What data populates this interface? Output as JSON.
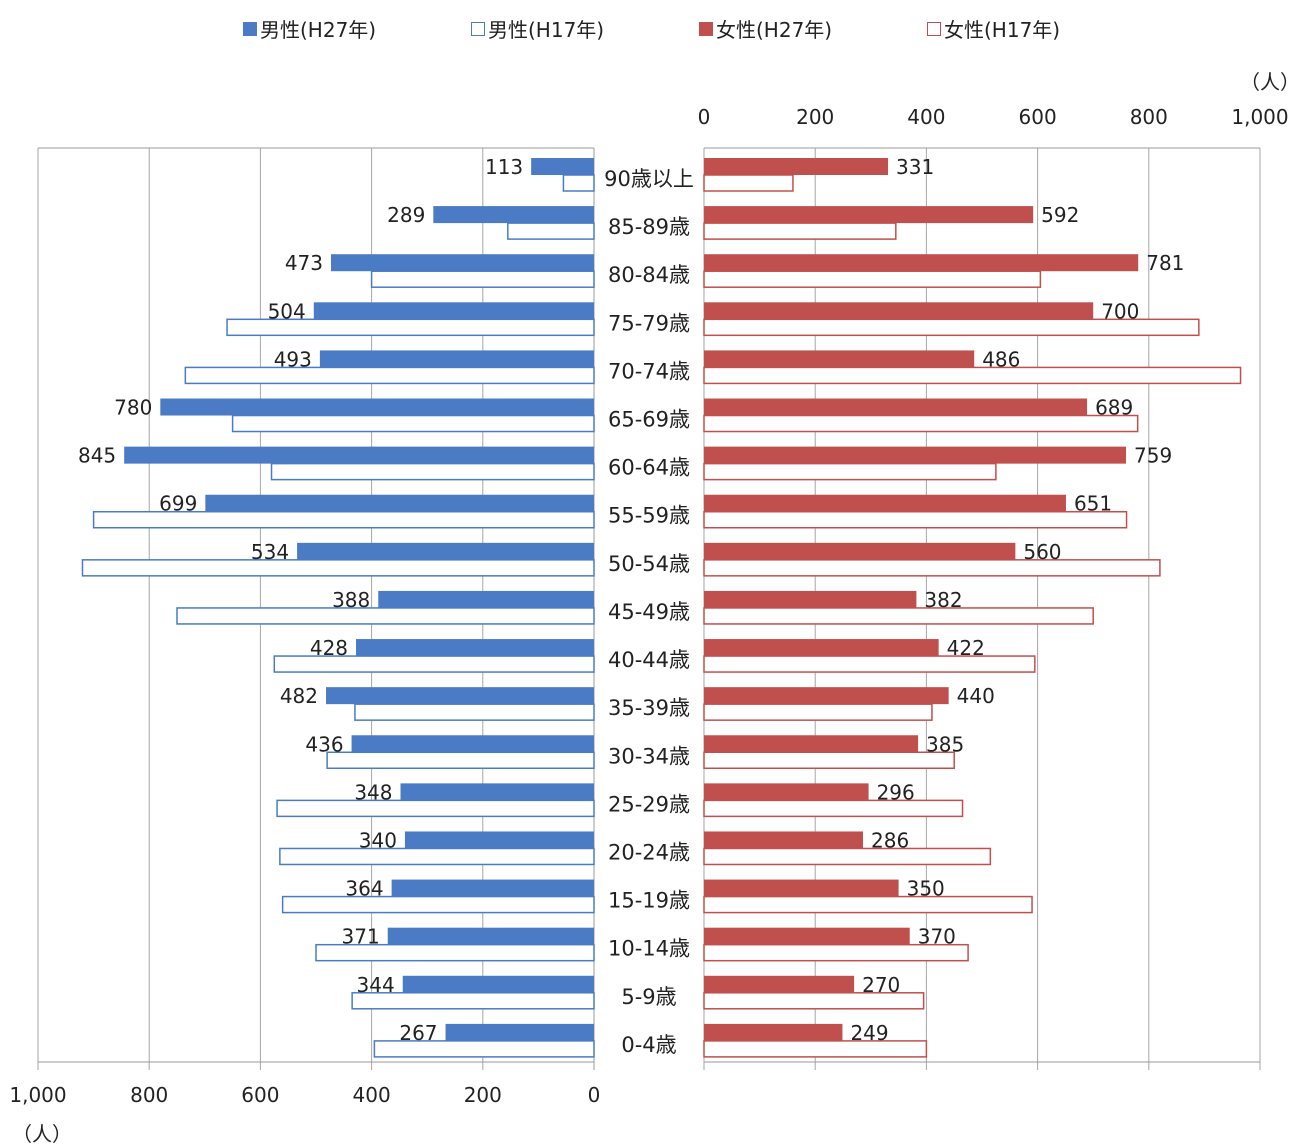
{
  "chart_data": {
    "type": "bar",
    "title": "",
    "unit_label": "（人）",
    "categories": [
      "90歳以上",
      "85-89歳",
      "80-84歳",
      "75-79歳",
      "70-74歳",
      "65-69歳",
      "60-64歳",
      "55-59歳",
      "50-54歳",
      "45-49歳",
      "40-44歳",
      "35-39歳",
      "30-34歳",
      "25-29歳",
      "20-24歳",
      "15-19歳",
      "10-14歳",
      "5-9歳",
      "0-4歳"
    ],
    "series": [
      {
        "name": "男性(H27年)",
        "side": "left",
        "style": "filled",
        "color": "#4a7bc4",
        "values": [
          113,
          289,
          473,
          504,
          493,
          780,
          845,
          699,
          534,
          388,
          428,
          482,
          436,
          348,
          340,
          364,
          371,
          344,
          267
        ]
      },
      {
        "name": "男性(H17年)",
        "side": "left",
        "style": "outline",
        "color": "#4a7bc4",
        "values": [
          55,
          155,
          400,
          660,
          735,
          650,
          580,
          900,
          920,
          750,
          575,
          430,
          480,
          570,
          565,
          560,
          500,
          435,
          395
        ]
      },
      {
        "name": "女性(H27年)",
        "side": "right",
        "style": "filled",
        "color": "#c0504d",
        "values": [
          331,
          592,
          781,
          700,
          486,
          689,
          759,
          651,
          560,
          382,
          422,
          440,
          385,
          296,
          286,
          350,
          370,
          270,
          249
        ]
      },
      {
        "name": "女性(H17年)",
        "side": "right",
        "style": "outline",
        "color": "#c0504d",
        "values": [
          160,
          345,
          605,
          890,
          965,
          780,
          525,
          760,
          820,
          700,
          595,
          410,
          450,
          465,
          515,
          590,
          475,
          395,
          400
        ]
      }
    ],
    "label_series": [
      "男性(H27年)",
      "女性(H27年)"
    ],
    "x_left": {
      "range": [
        0,
        1000
      ],
      "ticks": [
        "1,000",
        "800",
        "600",
        "400",
        "200",
        "0"
      ]
    },
    "x_right": {
      "range": [
        0,
        1000
      ],
      "ticks": [
        "0",
        "200",
        "400",
        "600",
        "800",
        "1,000"
      ]
    },
    "grid": true,
    "legend_position": "top"
  }
}
